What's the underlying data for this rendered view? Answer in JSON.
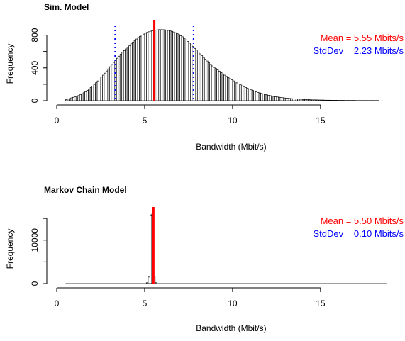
{
  "colors": {
    "mean_line": "#ff0000",
    "sd_line": "#0000ff",
    "bars": "#000000",
    "background": "#ffffff"
  },
  "chart_data": [
    {
      "type": "bar",
      "title": "Sim. Model",
      "xlabel": "Bandwidth (Mbit/s)",
      "ylabel": "Frequency",
      "xlim": [
        0,
        19
      ],
      "ylim": [
        0,
        900
      ],
      "xticks": [
        "0",
        "5",
        "10",
        "15"
      ],
      "yticks": [
        "0",
        "400",
        "800"
      ],
      "ytick_values": [
        0,
        200,
        400,
        600,
        800
      ],
      "ytick_labeled": [
        true,
        false,
        true,
        false,
        true
      ],
      "bin_width": 0.1,
      "bin_start": 0.5,
      "mean": 5.55,
      "sd": 2.23,
      "mean_label": "Mean = 5.55 Mbits/s",
      "sd_label": "StdDev =  2.23 Mbits/s",
      "legend_position": "top-right",
      "grid": false,
      "values": [
        12,
        18,
        26,
        34,
        41,
        49,
        56,
        62,
        72,
        84,
        97,
        110,
        125,
        142,
        160,
        178,
        198,
        219,
        241,
        263,
        287,
        311,
        336,
        362,
        388,
        414,
        441,
        467,
        493,
        518,
        543,
        567,
        590,
        612,
        632,
        652,
        670,
        694,
        715,
        734,
        752,
        770,
        785,
        800,
        812,
        823,
        833,
        841,
        848,
        854,
        858,
        862,
        864,
        867,
        866,
        866,
        864,
        861,
        857,
        852,
        846,
        838,
        829,
        818,
        806,
        793,
        780,
        761,
        742,
        722,
        702,
        682,
        660,
        638,
        616,
        594,
        571,
        549,
        527,
        505,
        484,
        463,
        443,
        424,
        406,
        392,
        375,
        358,
        342,
        326,
        311,
        296,
        282,
        268,
        255,
        242,
        229,
        217,
        204,
        193,
        181,
        171,
        160,
        150,
        141,
        132,
        124,
        116,
        108,
        101,
        94,
        88,
        82,
        76,
        71,
        66,
        61,
        57,
        52,
        49,
        45,
        42,
        39,
        36,
        33,
        31,
        29,
        27,
        25,
        23,
        22,
        20,
        19,
        17,
        16,
        15,
        14,
        13,
        12,
        11,
        10,
        10,
        9,
        9,
        8,
        8,
        7,
        7,
        6,
        6,
        6,
        5,
        5,
        5,
        5,
        4,
        4,
        4,
        4,
        3,
        3,
        3,
        3,
        3,
        3,
        2,
        2,
        2,
        2,
        2,
        2,
        2,
        2,
        2,
        2,
        2,
        2,
        2
      ]
    },
    {
      "type": "bar",
      "title": "Markov Chain Model",
      "xlabel": "Bandwidth (Mbit/s)",
      "ylabel": "Frequency",
      "xlim": [
        0,
        19
      ],
      "ylim": [
        0,
        16000
      ],
      "xticks": [
        "0",
        "5",
        "10",
        "15"
      ],
      "yticks": [
        "0",
        "10000"
      ],
      "ytick_values": [
        0,
        5000,
        10000,
        15000
      ],
      "ytick_labeled": [
        true,
        false,
        true,
        false
      ],
      "bin_width": 0.1,
      "bin_start": 5.1,
      "mean": 5.5,
      "sd": 0.1,
      "mean_label": "Mean = 5.50 Mbits/s",
      "sd_label": "StdDev =  0.10 Mbits/s",
      "legend_position": "top-right",
      "grid": false,
      "values": [
        200,
        1500,
        15800,
        16000,
        1500,
        200
      ],
      "baseline_range": [
        0.5,
        18.8
      ]
    }
  ]
}
